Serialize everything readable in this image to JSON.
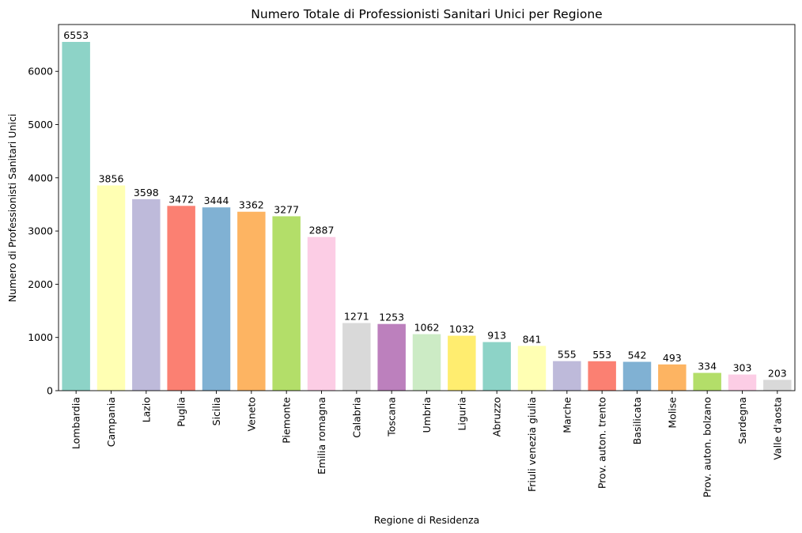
{
  "chart_data": {
    "type": "bar",
    "title": "Numero Totale di Professionisti Sanitari Unici per Regione",
    "xlabel": "Regione di Residenza",
    "ylabel": "Numero di Professionisti Sanitari Unici",
    "ylim": [
      0,
      6880
    ],
    "yticks": [
      0,
      1000,
      2000,
      3000,
      4000,
      5000,
      6000
    ],
    "grid": false,
    "categories": [
      "Lombardia",
      "Campania",
      "Lazio",
      "Puglia",
      "Sicilia",
      "Veneto",
      "Piemonte",
      "Emilia romagna",
      "Calabria",
      "Toscana",
      "Umbria",
      "Liguria",
      "Abruzzo",
      "Friuli venezia giulia",
      "Marche",
      "Prov. auton. trento",
      "Basilicata",
      "Molise",
      "Prov. auton. bolzano",
      "Sardegna",
      "Valle d'aosta"
    ],
    "values": [
      6553,
      3856,
      3598,
      3472,
      3444,
      3362,
      3277,
      2887,
      1271,
      1253,
      1062,
      1032,
      913,
      841,
      555,
      553,
      542,
      493,
      334,
      303,
      203
    ],
    "colors": [
      "#8dd3c7",
      "#ffffb3",
      "#bebada",
      "#fb8072",
      "#80b1d3",
      "#fdb462",
      "#b3de69",
      "#fccde5",
      "#d9d9d9",
      "#bc80bd",
      "#ccebc5",
      "#ffed6f",
      "#8dd3c7",
      "#ffffb3",
      "#bebada",
      "#fb8072",
      "#80b1d3",
      "#fdb462",
      "#b3de69",
      "#fccde5",
      "#d9d9d9"
    ]
  }
}
